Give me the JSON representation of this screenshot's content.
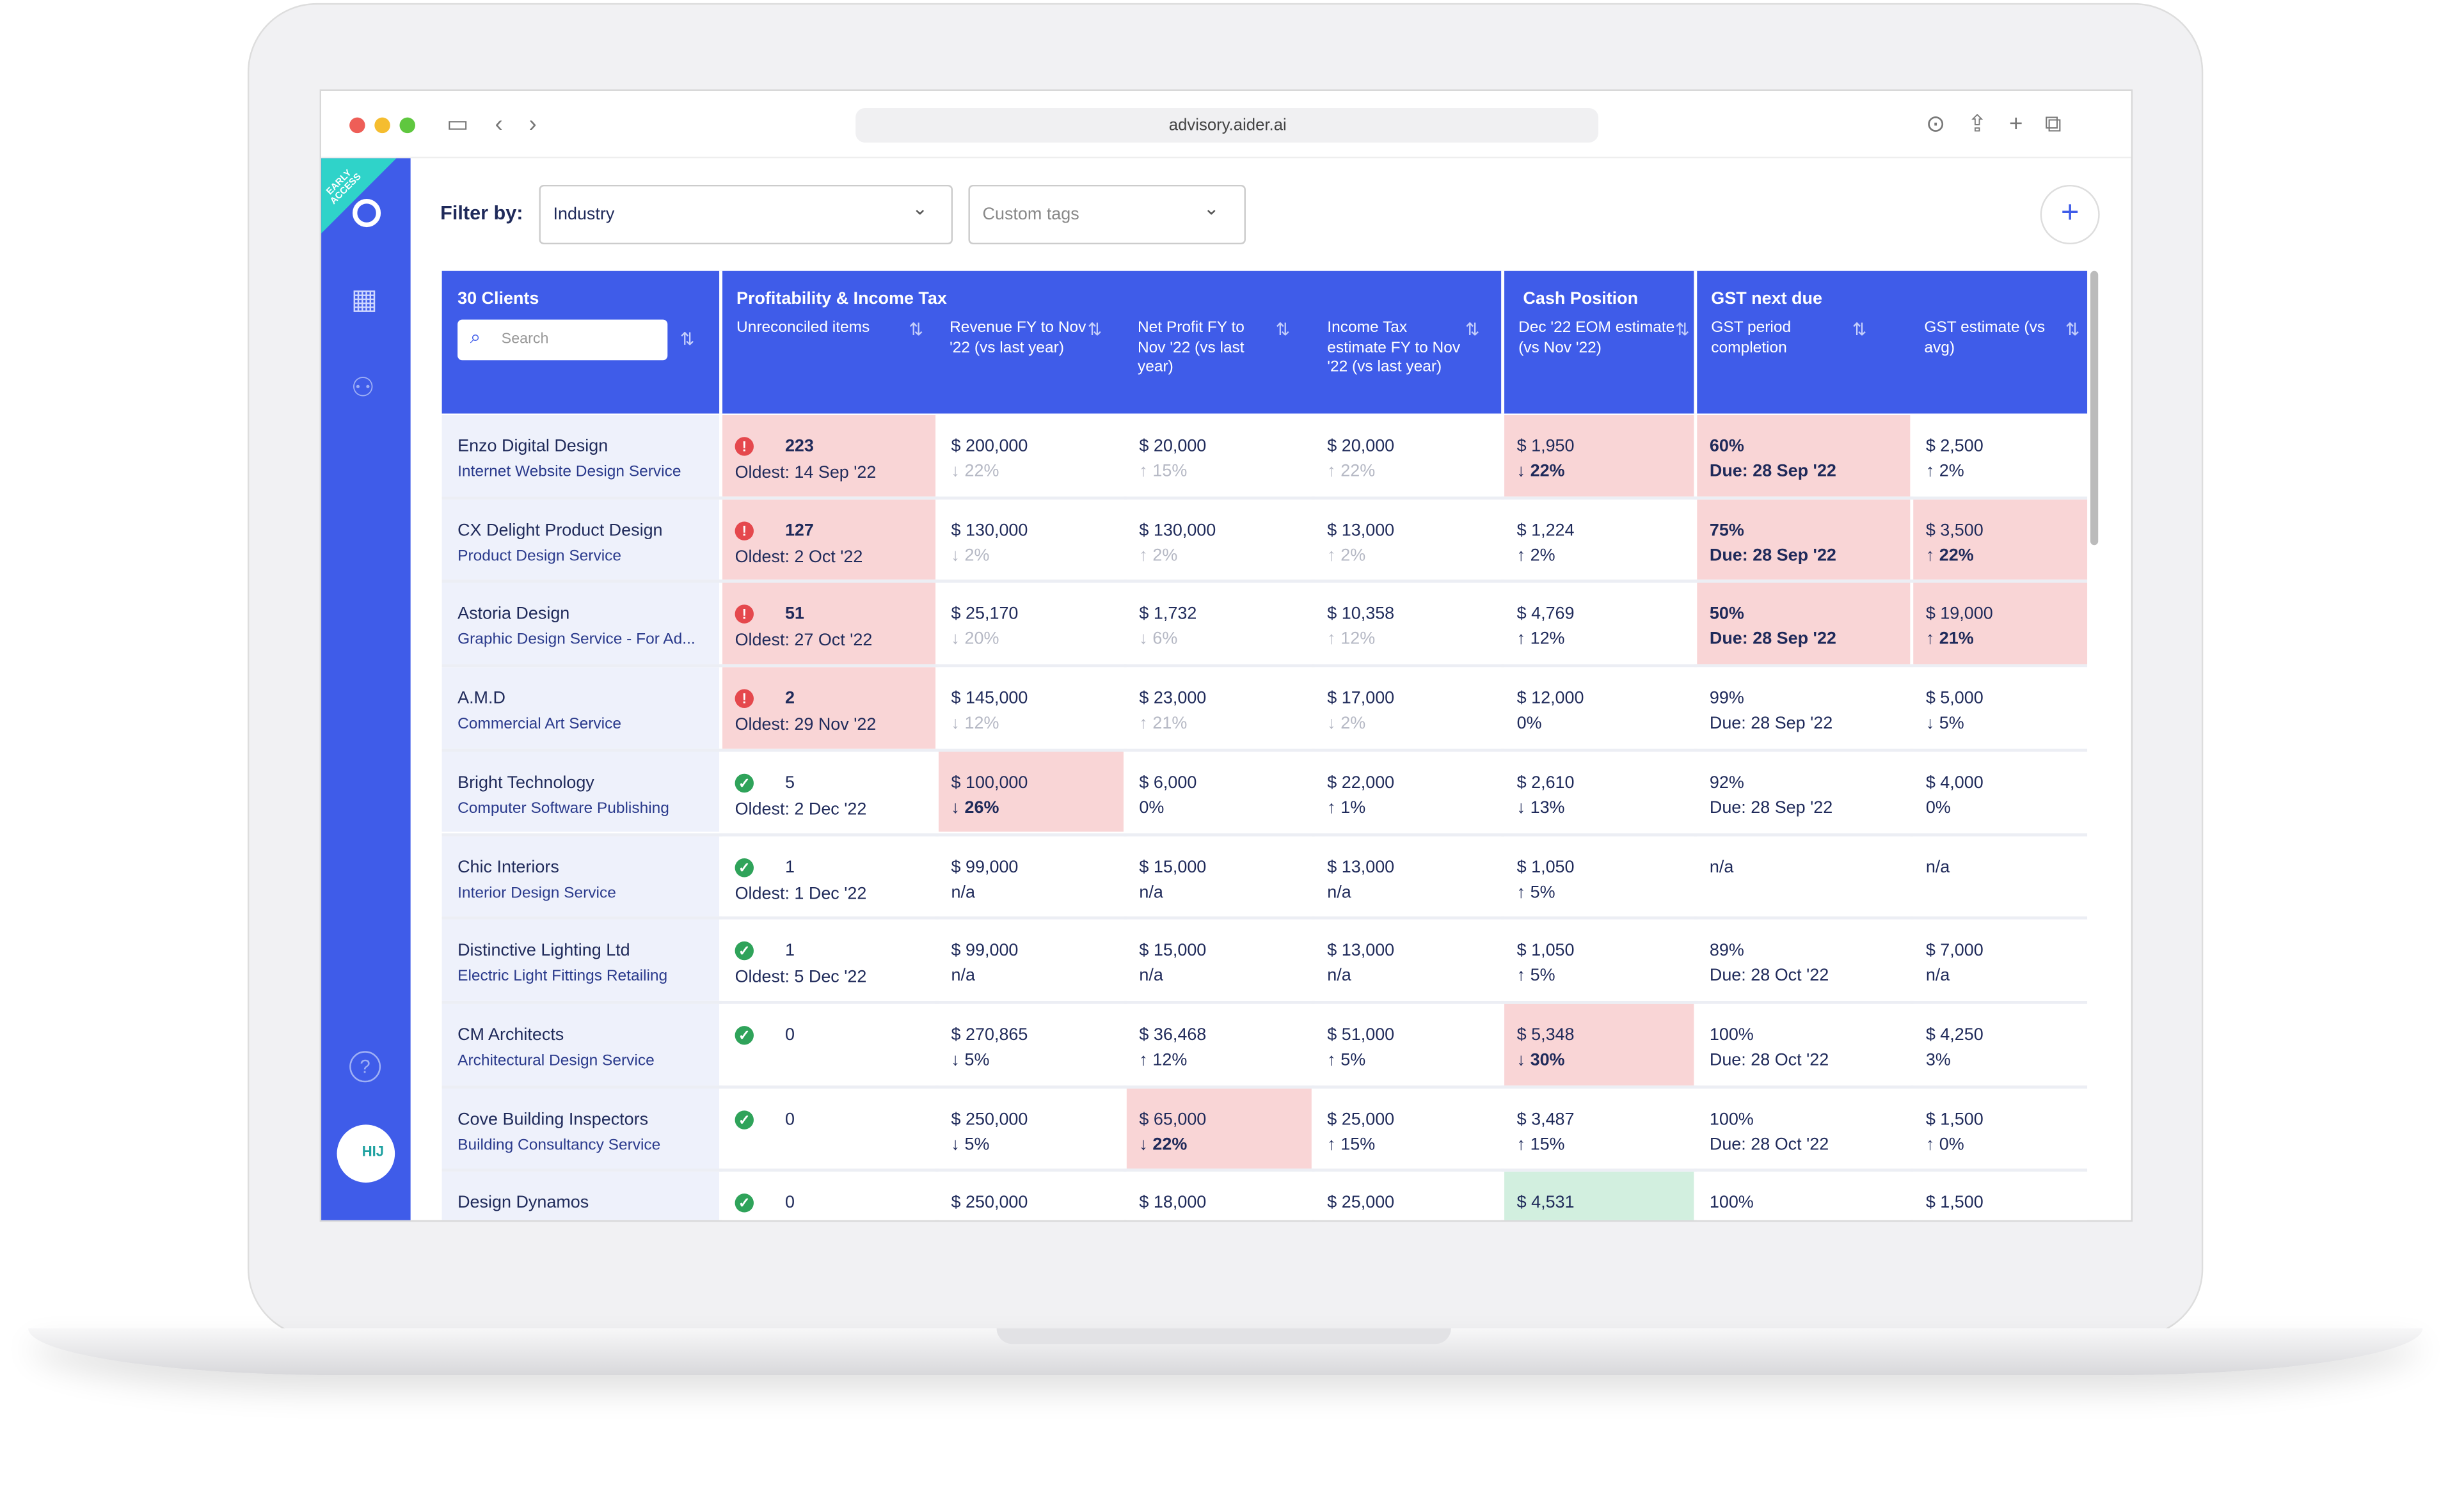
{
  "browser": {
    "url": "advisory.aider.ai"
  },
  "sidebar": {
    "badge": "EARLY ACCESS",
    "avatar": "HIJ"
  },
  "filter": {
    "label": "Filter by:",
    "industry": "Industry",
    "tags": "Custom tags"
  },
  "table": {
    "header": {
      "clients": "30 Clients",
      "search": "Search",
      "group1": "Profitability & Income Tax",
      "unreconciled": "Unreconciled items",
      "revenue": "Revenue FY to Nov '22 (vs last year)",
      "net_profit": "Net Profit FY to Nov '22 (vs last year)",
      "income_tax": "Income Tax estimate FY to Nov '22 (vs last year)",
      "group2": "Cash Position",
      "cash": "Dec '22 EOM estimate (vs Nov '22)",
      "group3": "GST next due",
      "gst_completion": "GST period completion",
      "gst_estimate": "GST estimate (vs avg)"
    },
    "rows": [
      {
        "name": "Enzo Digital Design",
        "service": "Internet Website Design Service",
        "unreconciled": {
          "status": "alert",
          "count": "223",
          "oldest": "Oldest: 14 Sep '22",
          "tone": "red"
        },
        "revenue": {
          "amount": "$ 200,000",
          "change": "↓ 22%",
          "tone": "muted"
        },
        "net_profit": {
          "amount": "$ 20,000",
          "change": "↑ 15%",
          "tone": "muted"
        },
        "income_tax": {
          "amount": "$ 20,000",
          "change": "↑ 22%",
          "tone": "muted"
        },
        "cash": {
          "amount": "$ 1,950",
          "change": "↓ 22%",
          "tone": "red"
        },
        "gst_completion": {
          "amount": "60%",
          "change": "Due: 28 Sep '22",
          "tone": "red"
        },
        "gst_estimate": {
          "amount": "$ 2,500",
          "change": "↑ 2%"
        }
      },
      {
        "name": "CX Delight Product Design",
        "service": "Product Design Service",
        "unreconciled": {
          "status": "alert",
          "count": "127",
          "oldest": "Oldest: 2 Oct '22",
          "tone": "red"
        },
        "revenue": {
          "amount": "$ 130,000",
          "change": "↓ 2%",
          "tone": "muted"
        },
        "net_profit": {
          "amount": "$ 130,000",
          "change": "↑ 2%",
          "tone": "muted"
        },
        "income_tax": {
          "amount": "$ 13,000",
          "change": "↑ 2%",
          "tone": "muted"
        },
        "cash": {
          "amount": "$ 1,224",
          "change": "↑ 2%"
        },
        "gst_completion": {
          "amount": "75%",
          "change": "Due: 28 Sep '22",
          "tone": "red"
        },
        "gst_estimate": {
          "amount": "$ 3,500",
          "change": "↑ 22%",
          "tone": "red"
        }
      },
      {
        "name": "Astoria Design",
        "service": "Graphic Design Service - For Ad...",
        "unreconciled": {
          "status": "alert",
          "count": "51",
          "oldest": "Oldest: 27 Oct '22",
          "tone": "red"
        },
        "revenue": {
          "amount": "$ 25,170",
          "change": "↓ 20%",
          "tone": "muted"
        },
        "net_profit": {
          "amount": "$ 1,732",
          "change": "↓ 6%",
          "tone": "muted"
        },
        "income_tax": {
          "amount": "$ 10,358",
          "change": "↑ 12%",
          "tone": "muted"
        },
        "cash": {
          "amount": "$ 4,769",
          "change": "↑ 12%"
        },
        "gst_completion": {
          "amount": "50%",
          "change": "Due: 28 Sep '22",
          "tone": "red"
        },
        "gst_estimate": {
          "amount": "$ 19,000",
          "change": "↑ 21%",
          "tone": "red"
        }
      },
      {
        "name": "A.M.D",
        "service": "Commercial Art Service",
        "unreconciled": {
          "status": "alert",
          "count": "2",
          "oldest": "Oldest: 29 Nov '22",
          "tone": "red"
        },
        "revenue": {
          "amount": "$ 145,000",
          "change": "↓ 12%",
          "tone": "muted"
        },
        "net_profit": {
          "amount": "$ 23,000",
          "change": "↑ 21%",
          "tone": "muted"
        },
        "income_tax": {
          "amount": "$ 17,000",
          "change": "↓ 2%",
          "tone": "muted"
        },
        "cash": {
          "amount": "$ 12,000",
          "change": "0%"
        },
        "gst_completion": {
          "amount": "99%",
          "change": "Due: 28 Sep '22"
        },
        "gst_estimate": {
          "amount": "$ 5,000",
          "change": "↓ 5%"
        }
      },
      {
        "name": "Bright Technology",
        "service": "Computer Software Publishing",
        "unreconciled": {
          "status": "ok",
          "count": "5",
          "oldest": "Oldest: 2 Dec '22"
        },
        "revenue": {
          "amount": "$ 100,000",
          "change": "↓ 26%",
          "tone": "red"
        },
        "net_profit": {
          "amount": "$ 6,000",
          "change": "0%"
        },
        "income_tax": {
          "amount": "$ 22,000",
          "change": "↑ 1%"
        },
        "cash": {
          "amount": "$ 2,610",
          "change": "↓ 13%"
        },
        "gst_completion": {
          "amount": "92%",
          "change": "Due: 28 Sep '22"
        },
        "gst_estimate": {
          "amount": "$ 4,000",
          "change": "0%"
        }
      },
      {
        "name": "Chic Interiors",
        "service": "Interior Design Service",
        "unreconciled": {
          "status": "ok",
          "count": "1",
          "oldest": "Oldest: 1 Dec '22"
        },
        "revenue": {
          "amount": "$ 99,000",
          "change": "n/a"
        },
        "net_profit": {
          "amount": "$ 15,000",
          "change": "n/a"
        },
        "income_tax": {
          "amount": "$ 13,000",
          "change": "n/a"
        },
        "cash": {
          "amount": "$ 1,050",
          "change": "↑ 5%"
        },
        "gst_completion": {
          "amount": "n/a"
        },
        "gst_estimate": {
          "amount": "n/a"
        }
      },
      {
        "name": "Distinctive Lighting Ltd",
        "service": "Electric Light Fittings Retailing",
        "unreconciled": {
          "status": "ok",
          "count": "1",
          "oldest": "Oldest: 5 Dec '22"
        },
        "revenue": {
          "amount": "$ 99,000",
          "change": "n/a"
        },
        "net_profit": {
          "amount": "$ 15,000",
          "change": "n/a"
        },
        "income_tax": {
          "amount": "$ 13,000",
          "change": "n/a"
        },
        "cash": {
          "amount": "$ 1,050",
          "change": "↑ 5%"
        },
        "gst_completion": {
          "amount": "89%",
          "change": "Due: 28 Oct '22"
        },
        "gst_estimate": {
          "amount": "$ 7,000",
          "change": "n/a"
        }
      },
      {
        "name": "CM Architects",
        "service": "Architectural Design Service",
        "unreconciled": {
          "status": "ok",
          "count": "0"
        },
        "revenue": {
          "amount": "$ 270,865",
          "change": "↓ 5%"
        },
        "net_profit": {
          "amount": "$ 36,468",
          "change": "↑ 12%"
        },
        "income_tax": {
          "amount": "$ 51,000",
          "change": "↑ 5%"
        },
        "cash": {
          "amount": "$ 5,348",
          "change": "↓ 30%",
          "tone": "red"
        },
        "gst_completion": {
          "amount": "100%",
          "change": "Due: 28 Oct '22"
        },
        "gst_estimate": {
          "amount": "$ 4,250",
          "change": "3%"
        }
      },
      {
        "name": "Cove Building Inspectors",
        "service": "Building Consultancy Service",
        "unreconciled": {
          "status": "ok",
          "count": "0"
        },
        "revenue": {
          "amount": "$ 250,000",
          "change": "↓ 5%"
        },
        "net_profit": {
          "amount": "$ 65,000",
          "change": "↓ 22%",
          "tone": "red"
        },
        "income_tax": {
          "amount": "$ 25,000",
          "change": "↑ 15%"
        },
        "cash": {
          "amount": "$ 3,487",
          "change": "↑ 15%"
        },
        "gst_completion": {
          "amount": "100%",
          "change": "Due: 28 Oct '22"
        },
        "gst_estimate": {
          "amount": "$ 1,500",
          "change": "↑ 0%"
        }
      },
      {
        "name": "Design Dynamos",
        "unreconciled": {
          "status": "ok",
          "count": "0"
        },
        "revenue": {
          "amount": "$ 250,000"
        },
        "net_profit": {
          "amount": "$ 18,000"
        },
        "income_tax": {
          "amount": "$ 25,000"
        },
        "cash": {
          "amount": "$ 4,531",
          "tone": "green"
        },
        "gst_completion": {
          "amount": "100%"
        },
        "gst_estimate": {
          "amount": "$ 1,500"
        }
      }
    ]
  }
}
